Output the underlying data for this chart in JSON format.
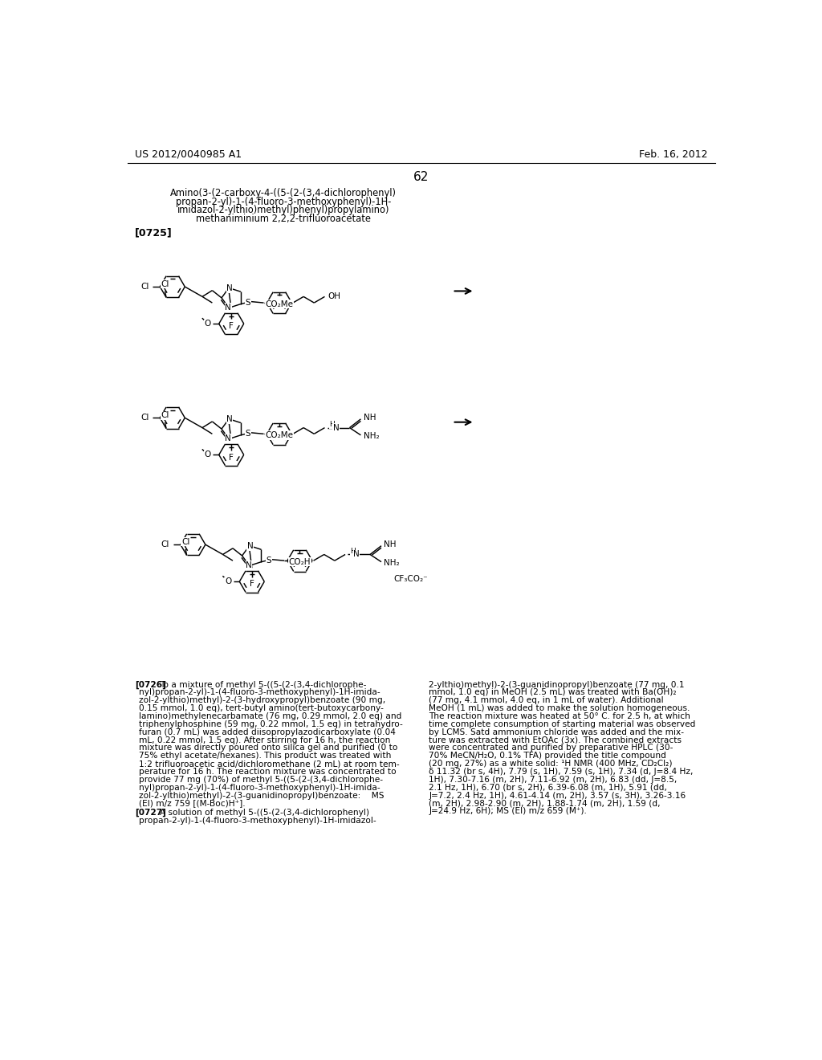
{
  "background_color": "#ffffff",
  "header_left": "US 2012/0040985 A1",
  "header_right": "Feb. 16, 2012",
  "page_number": "62",
  "compound_name_lines": [
    "Amino(3-(2-carboxy-4-((5-(2-(3,4-dichlorophenyl)",
    "propan-2-yl)-1-(4-fluoro-3-methoxyphenyl)-1H-",
    "imidazol-2-ylthio)methyl)phenyl)propylamino)",
    "methaniminium 2,2,2-trifluoroacetate"
  ],
  "paragraph_ref": "[0725]",
  "p726_label": "[0726]",
  "p726_col1_lines": [
    "To a mixture of methyl 5-((5-(2-(3,4-dichlorophe-",
    "nyl)propan-2-yl)-1-(4-fluoro-3-methoxyphenyl)-1H-imida-",
    "zol-2-ylthio)methyl)-2-(3-hydroxypropyl)benzoate (90 mg,",
    "0.15 mmol, 1.0 eq), tert-butyl amino(tert-butoxycarbony-",
    "lamino)methylenecarbamate (76 mg, 0.29 mmol, 2.0 eq) and",
    "triphenylphosphine (59 mg, 0.22 mmol, 1.5 eq) in tetrahydro-",
    "furan (0.7 mL) was added diisopropylazodicarboxylate (0.04",
    "mL, 0.22 mmol, 1.5 eq). After stirring for 16 h, the reaction",
    "mixture was directly poured onto silica gel and purified (0 to",
    "75% ethyl acetate/hexanes). This product was treated with",
    "1:2 trifluoroacetic acid/dichloromethane (2 mL) at room tem-",
    "perature for 16 h. The reaction mixture was concentrated to",
    "provide 77 mg (70%) of methyl 5-((5-(2-(3,4-dichlorophe-",
    "nyl)propan-2-yl)-1-(4-fluoro-3-methoxyphenyl)-1H-imida-",
    "zol-2-ylthio)methyl)-2-(3-guanidinopropyl)benzoate:    MS",
    "(EI) m/z 759 [(M-Boc)H⁺]."
  ],
  "p727_label": "[0727]",
  "p727_col1_lines": [
    "A solution of methyl 5-((5-(2-(3,4-dichlorophenyl)",
    "propan-2-yl)-1-(4-fluoro-3-methoxyphenyl)-1H-imidazol-"
  ],
  "p726_col2_lines": [
    "2-ylthio)methyl)-2-(3-guanidinopropyl)benzoate (77 mg, 0.1",
    "mmol, 1.0 eq) in MeOH (2.5 mL) was treated with Ba(OH)₂",
    "(77 mg, 4.1 mmol, 4.0 eq, in 1 mL of water). Additional",
    "MeOH (1 mL) was added to make the solution homogeneous.",
    "The reaction mixture was heated at 50° C. for 2.5 h, at which",
    "time complete consumption of starting material was observed",
    "by LCMS. Satd ammonium chloride was added and the mix-",
    "ture was extracted with EtOAc (3x). The combined extracts",
    "were concentrated and purified by preparative HPLC (30-",
    "70% MeCN/H₂O, 0.1% TFA) provided the title compound",
    "(20 mg, 27%) as a white solid: ¹H NMR (400 MHz, CD₂Cl₂)",
    "δ 11.32 (br s, 4H), 7.79 (s, 1H), 7.59 (s, 1H), 7.34 (d, J=8.4 Hz,",
    "1H), 7.30-7.16 (m, 2H), 7.11-6.92 (m, 2H), 6.83 (dd, J=8.5,",
    "2.1 Hz, 1H), 6.70 (br s, 2H), 6.39-6.08 (m, 1H), 5.91 (dd,",
    "J=7.2, 2.4 Hz, 1H), 4.61-4.14 (m, 2H), 3.57 (s, 3H), 3.26-3.16",
    "(m, 2H), 2.98-2.90 (m, 2H), 1.88-1.74 (m, 2H), 1.59 (d,",
    "J=24.9 Hz, 6H); MS (EI) m/z 659 (M⁺)."
  ]
}
